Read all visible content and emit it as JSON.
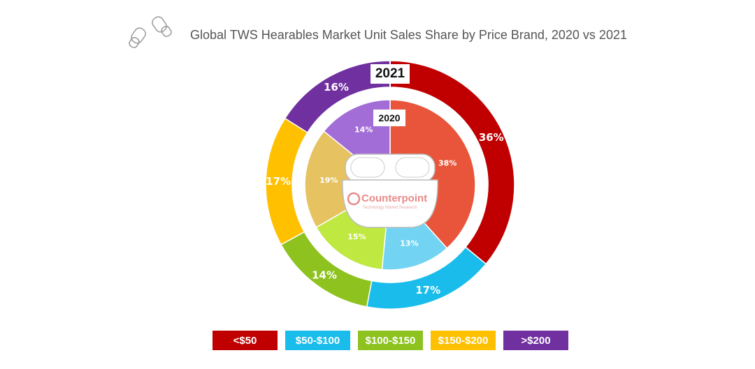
{
  "chart_data": {
    "type": "pie",
    "title": "Global TWS Hearables Market Unit Sales Share by Price Brand, 2020 vs 2021",
    "categories": [
      "<$50",
      "$50-$100",
      "$100-$150",
      "$150-$200",
      ">$200"
    ],
    "series": [
      {
        "name": "2021",
        "ring": "outer",
        "values": [
          36,
          17,
          14,
          17,
          16
        ],
        "labels": [
          "36%",
          "17%",
          "14%",
          "17%",
          "16%"
        ],
        "colors": [
          "#C00000",
          "#1ABCEB",
          "#8DC21F",
          "#FFC000",
          "#7030A0"
        ]
      },
      {
        "name": "2020",
        "ring": "inner",
        "values": [
          38,
          13,
          15,
          19,
          14
        ],
        "labels": [
          "38%",
          "13%",
          "15%",
          "19%",
          "14%"
        ],
        "colors": [
          "#E8553A",
          "#72D4F2",
          "#BFE840",
          "#E6C261",
          "#A26DD6"
        ]
      }
    ],
    "legend": {
      "placement": "bottom",
      "colors": [
        "#C00000",
        "#1ABCEB",
        "#8DC21F",
        "#FFC000",
        "#7030A0"
      ]
    }
  },
  "logo": {
    "name": "Counterpoint",
    "tagline": "Technology Market Research"
  }
}
